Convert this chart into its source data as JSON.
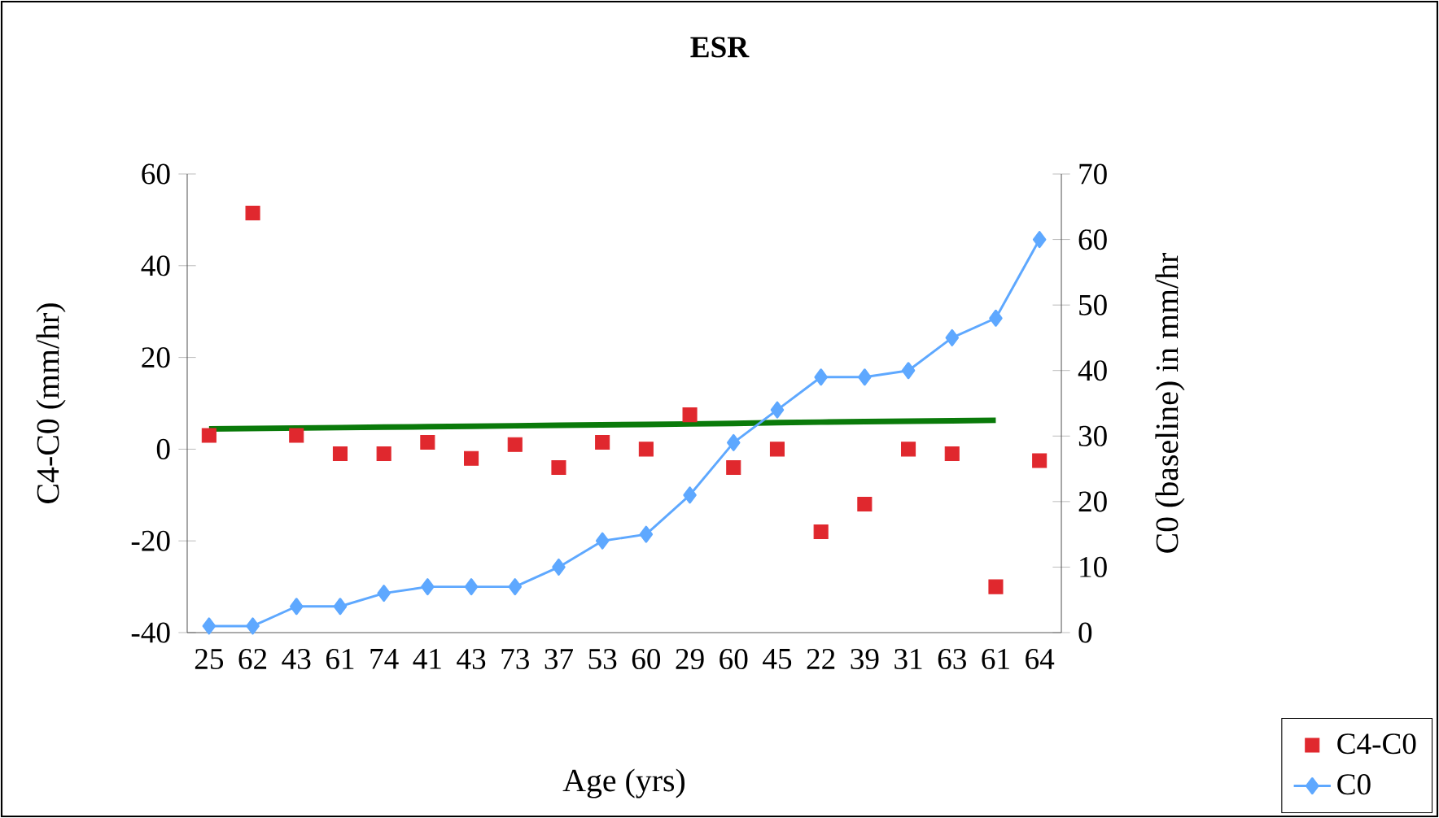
{
  "chart_data": {
    "type": "scatter",
    "title": "ESR",
    "xlabel": "Age (yrs)",
    "ylabel": "C4-C0 (mm/hr)",
    "y2label": "C0 (baseline) in mm/hr",
    "categories": [
      "25",
      "62",
      "43",
      "61",
      "74",
      "41",
      "43",
      "73",
      "37",
      "53",
      "60",
      "29",
      "60",
      "45",
      "22",
      "39",
      "31",
      "63",
      "61",
      "64"
    ],
    "ylim": [
      -40,
      60
    ],
    "yticks": [
      -40,
      -20,
      0,
      20,
      40,
      60
    ],
    "y2lim": [
      0,
      70
    ],
    "y2ticks": [
      0,
      10,
      20,
      30,
      40,
      50,
      60,
      70
    ],
    "legend": "bottom right",
    "series": [
      {
        "name": "C4-C0",
        "color": "#e0282e",
        "marker": "square",
        "values": [
          3,
          51.5,
          3,
          -1,
          -1,
          1.5,
          -2,
          1,
          -4,
          1.5,
          0,
          7.5,
          -4,
          0,
          -18,
          -12,
          0,
          -1,
          -30,
          -2.5
        ]
      },
      {
        "name": "C0",
        "type": "line",
        "axis": "y2",
        "color": "#5ea8ff",
        "marker": "diamond",
        "values": [
          1,
          1,
          4,
          4,
          6,
          7,
          7,
          7,
          10,
          14,
          15,
          21,
          29,
          34,
          39,
          39,
          40,
          45,
          48,
          60
        ]
      },
      {
        "type": "line",
        "color": "#0a7a0a",
        "marker": "none",
        "values": [
          4.4,
          4.5,
          4.6,
          4.7,
          4.8,
          4.9,
          5.0,
          5.1,
          5.2,
          5.3,
          5.4,
          5.5,
          5.6,
          5.8,
          5.9,
          6.0,
          6.1,
          6.2,
          6.3,
          null
        ]
      }
    ]
  }
}
